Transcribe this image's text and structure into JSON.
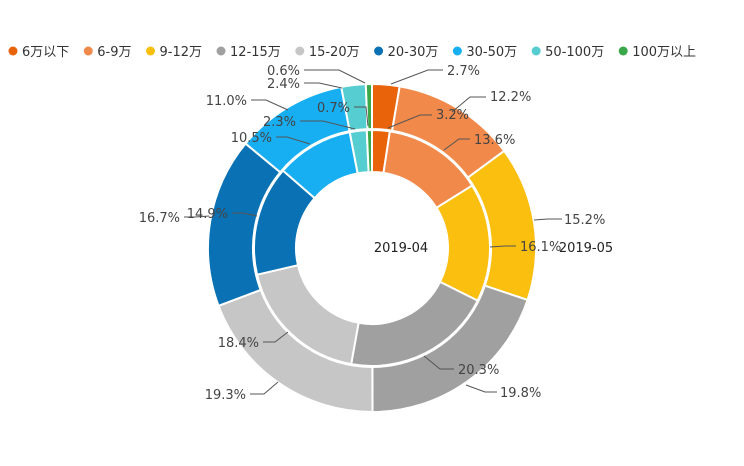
{
  "chart_data": {
    "type": "pie",
    "variant": "nested-donut",
    "categories": [
      "6万以下",
      "6-9万",
      "9-12万",
      "12-15万",
      "15-20万",
      "20-30万",
      "30-50万",
      "50-100万",
      "100万以上"
    ],
    "colors": [
      "#e8630a",
      "#f0894a",
      "#fbbf10",
      "#a0a0a0",
      "#c6c6c6",
      "#0a72b4",
      "#18aef2",
      "#56cdd0",
      "#3aa84a"
    ],
    "series": [
      {
        "name": "2019-04",
        "ring": "inner",
        "values": [
          2.4,
          13.6,
          16.1,
          20.3,
          18.4,
          14.9,
          10.5,
          2.3,
          0.7
        ],
        "labels": [
          "",
          "13.6%",
          "16.1%",
          "20.3%",
          "18.4%",
          "14.9%",
          "10.5%",
          "2.3%",
          "0.7%"
        ]
      },
      {
        "name": "2019-05",
        "ring": "outer",
        "values": [
          2.7,
          12.2,
          15.2,
          19.8,
          19.3,
          16.7,
          11.0,
          2.4,
          0.6
        ],
        "labels": [
          "2.7%",
          "12.2%",
          "15.2%",
          "19.8%",
          "19.3%",
          "16.7%",
          "11.0%",
          "2.4%",
          "0.6%"
        ]
      }
    ],
    "extra_labels": [
      {
        "text": "3.2%"
      }
    ],
    "legend_position": "top",
    "title": ""
  }
}
